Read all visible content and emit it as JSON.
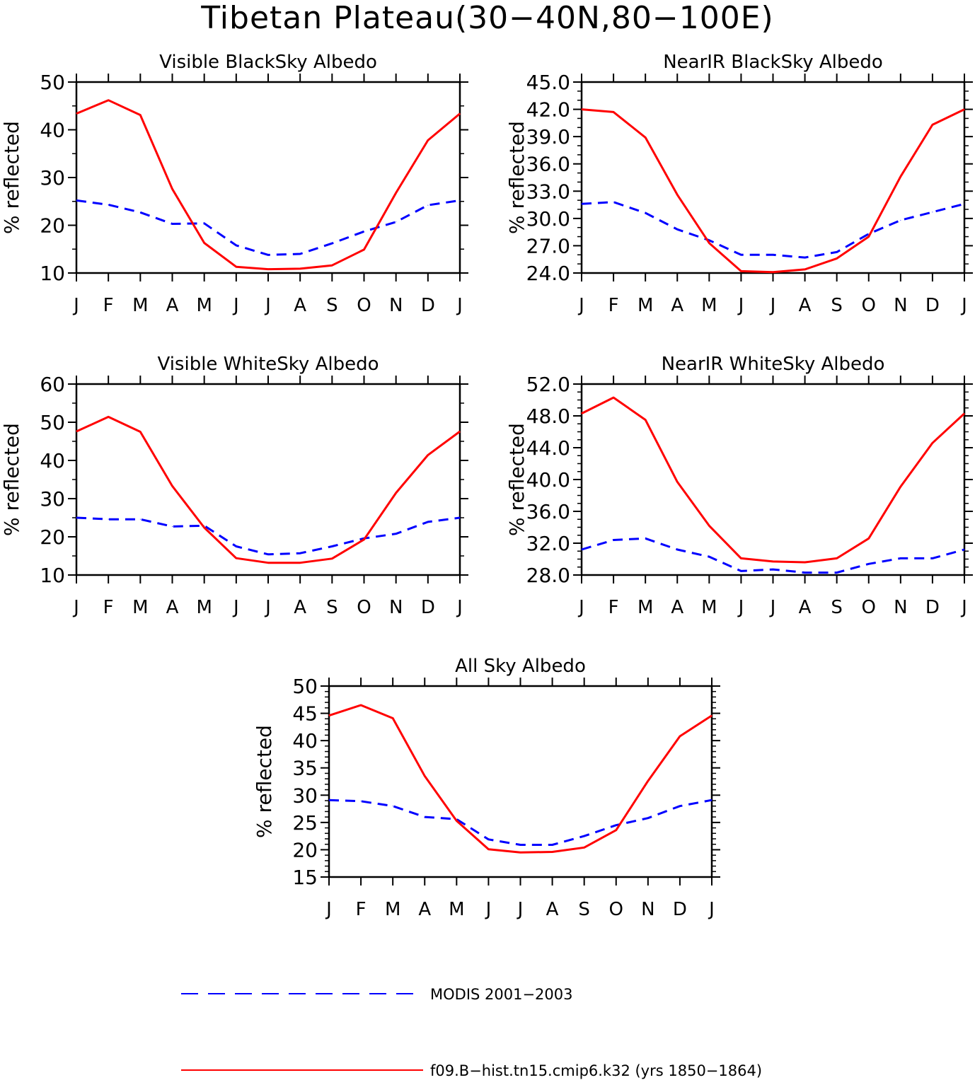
{
  "title": "Tibetan Plateau(30−40N,80−100E)",
  "legend": {
    "position": "bottom",
    "items": [
      {
        "label": "MODIS 2001−2003",
        "color": "#0000ff",
        "dash": "dashed"
      },
      {
        "label": "f09.B−hist.tn15.cmip6.k32 (yrs 1850−1864)",
        "color": "#ff0000",
        "dash": "solid"
      }
    ]
  },
  "chart_data": [
    {
      "type": "line",
      "title": "Visible BlackSky Albedo",
      "ylabel": "% reflected",
      "xlabel": "",
      "categories": [
        "J",
        "F",
        "M",
        "A",
        "M",
        "J",
        "J",
        "A",
        "S",
        "O",
        "N",
        "D",
        "J"
      ],
      "ylim": [
        10,
        50
      ],
      "yticks": [
        "10",
        "20",
        "30",
        "40",
        "50"
      ],
      "yminor": 2,
      "series": [
        {
          "name": "MODIS 2001−2003",
          "color": "#0000ff",
          "dash": "dashed",
          "values": [
            25.2,
            24.3,
            22.7,
            20.3,
            20.4,
            15.8,
            13.8,
            14.0,
            16.2,
            18.7,
            20.7,
            24.2,
            25.2
          ]
        },
        {
          "name": "f09.B−hist.tn15.cmip6.k32 (yrs 1850−1864)",
          "color": "#ff0000",
          "dash": "solid",
          "values": [
            43.4,
            46.2,
            43.1,
            27.6,
            16.3,
            11.3,
            10.8,
            10.9,
            11.6,
            14.9,
            26.8,
            37.8,
            43.4
          ]
        }
      ]
    },
    {
      "type": "line",
      "title": "NearIR BlackSky Albedo",
      "ylabel": "% reflected",
      "xlabel": "",
      "categories": [
        "J",
        "F",
        "M",
        "A",
        "M",
        "J",
        "J",
        "A",
        "S",
        "O",
        "N",
        "D",
        "J"
      ],
      "ylim": [
        24,
        45
      ],
      "yticks": [
        "24.0",
        "27.0",
        "30.0",
        "33.0",
        "36.0",
        "39.0",
        "42.0",
        "45.0"
      ],
      "yminor": 3,
      "series": [
        {
          "name": "MODIS 2001−2003",
          "color": "#0000ff",
          "dash": "dashed",
          "values": [
            31.6,
            31.8,
            30.6,
            28.8,
            27.6,
            26.0,
            26.0,
            25.7,
            26.3,
            28.3,
            29.8,
            30.7,
            31.6
          ]
        },
        {
          "name": "f09.B−hist.tn15.cmip6.k32 (yrs 1850−1864)",
          "color": "#ff0000",
          "dash": "solid",
          "values": [
            42.0,
            41.7,
            38.9,
            32.6,
            27.3,
            24.2,
            24.1,
            24.4,
            25.6,
            28.0,
            34.6,
            40.3,
            42.0
          ]
        }
      ]
    },
    {
      "type": "line",
      "title": "Visible WhiteSky Albedo",
      "ylabel": "% reflected",
      "xlabel": "",
      "categories": [
        "J",
        "F",
        "M",
        "A",
        "M",
        "J",
        "J",
        "A",
        "S",
        "O",
        "N",
        "D",
        "J"
      ],
      "ylim": [
        10,
        60
      ],
      "yticks": [
        "10",
        "20",
        "30",
        "40",
        "50",
        "60"
      ],
      "yminor": 2,
      "series": [
        {
          "name": "MODIS 2001−2003",
          "color": "#0000ff",
          "dash": "dashed",
          "values": [
            25.0,
            24.6,
            24.6,
            22.7,
            22.9,
            17.5,
            15.4,
            15.7,
            17.5,
            19.6,
            20.8,
            23.9,
            25.0
          ]
        },
        {
          "name": "f09.B−hist.tn15.cmip6.k32 (yrs 1850−1864)",
          "color": "#ff0000",
          "dash": "solid",
          "values": [
            47.6,
            51.4,
            47.5,
            33.3,
            22.4,
            14.4,
            13.2,
            13.2,
            14.3,
            19.3,
            31.5,
            41.4,
            47.6
          ]
        }
      ]
    },
    {
      "type": "line",
      "title": "NearIR WhiteSky Albedo",
      "ylabel": "% reflected",
      "xlabel": "",
      "categories": [
        "J",
        "F",
        "M",
        "A",
        "M",
        "J",
        "J",
        "A",
        "S",
        "O",
        "N",
        "D",
        "J"
      ],
      "ylim": [
        28,
        52
      ],
      "yticks": [
        "28.0",
        "32.0",
        "36.0",
        "40.0",
        "44.0",
        "48.0",
        "52.0"
      ],
      "yminor": 4,
      "series": [
        {
          "name": "MODIS 2001−2003",
          "color": "#0000ff",
          "dash": "dashed",
          "values": [
            31.2,
            32.4,
            32.6,
            31.2,
            30.3,
            28.5,
            28.7,
            28.3,
            28.3,
            29.4,
            30.1,
            30.1,
            31.2
          ]
        },
        {
          "name": "f09.B−hist.tn15.cmip6.k32 (yrs 1850−1864)",
          "color": "#ff0000",
          "dash": "solid",
          "values": [
            48.3,
            50.3,
            47.5,
            39.7,
            34.2,
            30.1,
            29.7,
            29.6,
            30.1,
            32.6,
            39.1,
            44.6,
            48.3
          ]
        }
      ]
    },
    {
      "type": "line",
      "title": "All Sky Albedo",
      "ylabel": "% reflected",
      "xlabel": "",
      "categories": [
        "J",
        "F",
        "M",
        "A",
        "M",
        "J",
        "J",
        "A",
        "S",
        "O",
        "N",
        "D",
        "J"
      ],
      "ylim": [
        15,
        50
      ],
      "yticks": [
        "15",
        "20",
        "25",
        "30",
        "35",
        "40",
        "45",
        "50"
      ],
      "yminor": 5,
      "series": [
        {
          "name": "MODIS 2001−2003",
          "color": "#0000ff",
          "dash": "dashed",
          "values": [
            29.1,
            28.9,
            28.0,
            26.0,
            25.6,
            21.9,
            20.9,
            20.9,
            22.5,
            24.5,
            25.8,
            28.0,
            29.1
          ]
        },
        {
          "name": "f09.B−hist.tn15.cmip6.k32 (yrs 1850−1864)",
          "color": "#ff0000",
          "dash": "solid",
          "values": [
            44.6,
            46.5,
            44.1,
            33.5,
            25.3,
            20.1,
            19.5,
            19.6,
            20.4,
            23.6,
            32.6,
            40.8,
            44.6
          ]
        }
      ]
    }
  ]
}
